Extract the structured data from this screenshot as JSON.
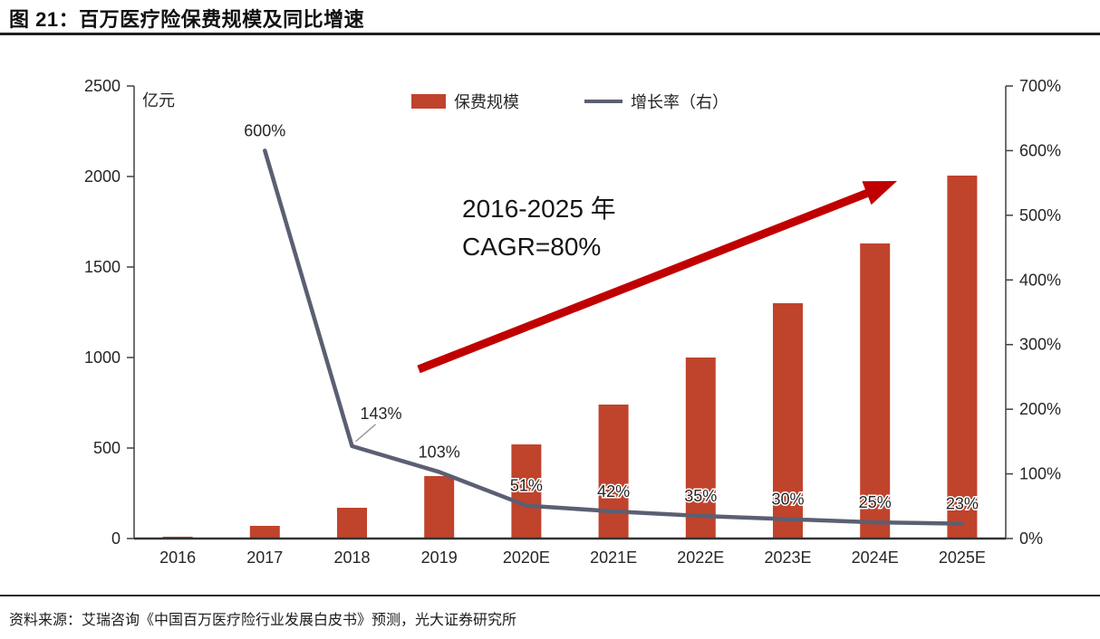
{
  "figure": {
    "title": "图 21：百万医疗险保费规模及同比增速",
    "source": "资料来源：艾瑞咨询《中国百万医疗险行业发展白皮书》预测，光大证券研究所"
  },
  "chart_data": {
    "type": "bar",
    "subtype": "bar+line dual axis",
    "categories": [
      "2016",
      "2017",
      "2018",
      "2019",
      "2020E",
      "2021E",
      "2022E",
      "2023E",
      "2024E",
      "2025E"
    ],
    "series": [
      {
        "name": "保费规模",
        "type": "bar",
        "axis": "left",
        "color": "#c0432c",
        "values": [
          10,
          70,
          170,
          345,
          520,
          740,
          1000,
          1300,
          1630,
          2005
        ]
      },
      {
        "name": "增长率（右）",
        "type": "line",
        "axis": "right",
        "color": "#5b5f72",
        "values": [
          null,
          600,
          143,
          103,
          51,
          42,
          35,
          30,
          25,
          23
        ],
        "labels": [
          null,
          "600%",
          "143%",
          "103%",
          "51%",
          "42%",
          "35%",
          "30%",
          "25%",
          "23%"
        ]
      }
    ],
    "left_axis": {
      "unit_label": "亿元",
      "min": 0,
      "max": 2500,
      "step": 500,
      "ticks": [
        "0",
        "500",
        "1000",
        "1500",
        "2000",
        "2500"
      ]
    },
    "right_axis": {
      "min": 0,
      "max": 700,
      "step": 100,
      "ticks": [
        "0%",
        "100%",
        "200%",
        "300%",
        "400%",
        "500%",
        "600%",
        "700%"
      ]
    },
    "legend": [
      {
        "label": "保费规模",
        "swatch": "bar"
      },
      {
        "label": "增长率（右）",
        "swatch": "line"
      }
    ],
    "annotation": {
      "line1": "2016-2025 年",
      "line2": "CAGR=80%",
      "arrow_color": "#c00000"
    },
    "grid": false,
    "legend_position": "top-center"
  }
}
